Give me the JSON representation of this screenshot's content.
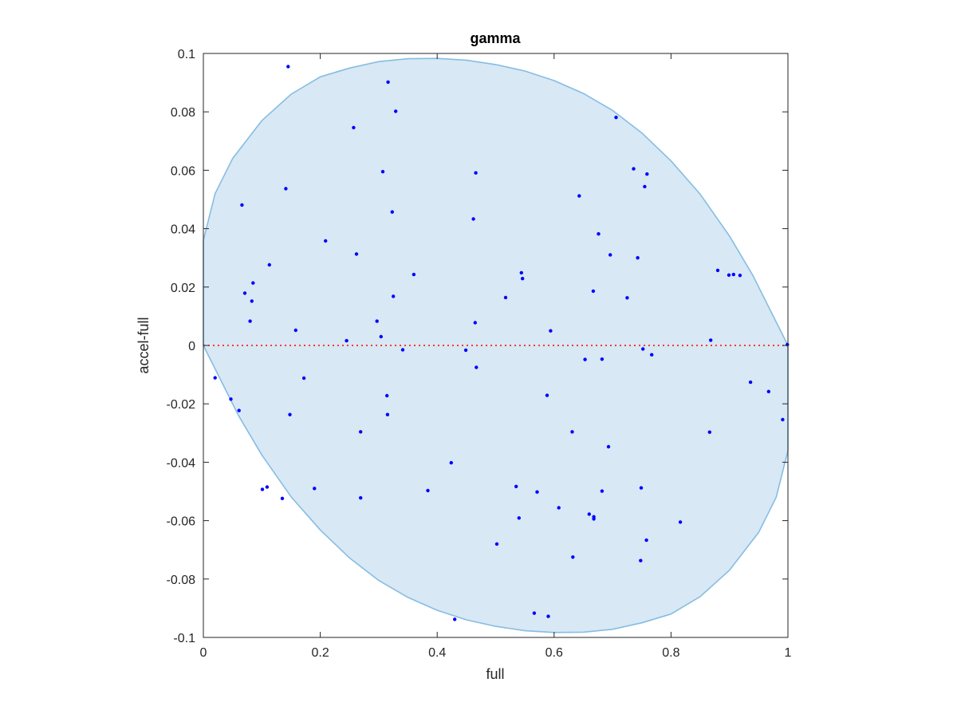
{
  "chart_data": {
    "type": "scatter",
    "title": "gamma",
    "xlabel": "full",
    "ylabel": "accel-full",
    "xlim": [
      0,
      1
    ],
    "ylim": [
      -0.1,
      0.1
    ],
    "xticks": [
      0,
      0.2,
      0.4,
      0.6,
      0.8,
      1
    ],
    "xtick_labels": [
      "0",
      "0.2",
      "0.4",
      "0.6",
      "0.8",
      "1"
    ],
    "yticks": [
      0.1,
      0.08,
      0.06,
      0.04,
      0.02,
      0,
      -0.02,
      -0.04,
      -0.06,
      -0.08,
      -0.1
    ],
    "ytick_labels": [
      "0.1",
      "0.08",
      "0.06",
      "0.04",
      "0.02",
      "0",
      "-0.02",
      "-0.04",
      "-0.06",
      "-0.08",
      "-0.1"
    ],
    "grid": false,
    "reference_line": {
      "y": 0,
      "style": "dotted",
      "color": "#ff0000"
    },
    "region": {
      "shape": "ellipse",
      "fill": "#d8e8f4",
      "edge": "#86bde3",
      "boundary": [
        [
          0.0,
          0.036
        ],
        [
          0.02,
          0.052
        ],
        [
          0.05,
          0.064
        ],
        [
          0.1,
          0.077
        ],
        [
          0.15,
          0.086
        ],
        [
          0.2,
          0.092
        ],
        [
          0.25,
          0.095
        ],
        [
          0.3,
          0.0972
        ],
        [
          0.35,
          0.0982
        ],
        [
          0.4,
          0.0983
        ],
        [
          0.45,
          0.0977
        ],
        [
          0.5,
          0.0962
        ],
        [
          0.55,
          0.094
        ],
        [
          0.6,
          0.0907
        ],
        [
          0.65,
          0.0863
        ],
        [
          0.7,
          0.0805
        ],
        [
          0.75,
          0.0728
        ],
        [
          0.8,
          0.0632
        ],
        [
          0.85,
          0.0518
        ],
        [
          0.9,
          0.0375
        ],
        [
          0.94,
          0.024
        ],
        [
          0.97,
          0.012
        ],
        [
          0.99,
          0.004
        ],
        [
          1.0,
          0.0
        ],
        [
          1.0,
          -0.036
        ],
        [
          0.98,
          -0.052
        ],
        [
          0.95,
          -0.064
        ],
        [
          0.9,
          -0.077
        ],
        [
          0.85,
          -0.086
        ],
        [
          0.8,
          -0.092
        ],
        [
          0.75,
          -0.095
        ],
        [
          0.7,
          -0.0972
        ],
        [
          0.65,
          -0.0982
        ],
        [
          0.6,
          -0.0983
        ],
        [
          0.55,
          -0.0977
        ],
        [
          0.5,
          -0.0962
        ],
        [
          0.45,
          -0.094
        ],
        [
          0.4,
          -0.0907
        ],
        [
          0.35,
          -0.0863
        ],
        [
          0.3,
          -0.0805
        ],
        [
          0.25,
          -0.0728
        ],
        [
          0.2,
          -0.0632
        ],
        [
          0.15,
          -0.0518
        ],
        [
          0.1,
          -0.0375
        ],
        [
          0.06,
          -0.024
        ],
        [
          0.03,
          -0.012
        ],
        [
          0.01,
          -0.004
        ],
        [
          0.0,
          0.0
        ]
      ]
    },
    "series": [
      {
        "color": "#0000ff",
        "marker": "dot",
        "points": [
          [
            0.145,
            0.0955
          ],
          [
            0.316,
            0.0902
          ],
          [
            0.329,
            0.0802
          ],
          [
            0.257,
            0.0746
          ],
          [
            0.706,
            0.0781
          ],
          [
            0.307,
            0.0595
          ],
          [
            0.466,
            0.0591
          ],
          [
            0.736,
            0.0605
          ],
          [
            0.759,
            0.0587
          ],
          [
            0.755,
            0.0544
          ],
          [
            0.066,
            0.0481
          ],
          [
            0.141,
            0.0537
          ],
          [
            0.323,
            0.0457
          ],
          [
            0.643,
            0.0512
          ],
          [
            0.462,
            0.0433
          ],
          [
            0.676,
            0.0382
          ],
          [
            0.209,
            0.0358
          ],
          [
            0.262,
            0.0313
          ],
          [
            0.696,
            0.031
          ],
          [
            0.743,
            0.03
          ],
          [
            0.113,
            0.0276
          ],
          [
            0.544,
            0.0249
          ],
          [
            0.546,
            0.0229
          ],
          [
            0.36,
            0.0243
          ],
          [
            0.88,
            0.0257
          ],
          [
            0.899,
            0.0241
          ],
          [
            0.907,
            0.0243
          ],
          [
            0.918,
            0.024
          ],
          [
            0.085,
            0.0214
          ],
          [
            0.071,
            0.0179
          ],
          [
            0.083,
            0.0152
          ],
          [
            0.325,
            0.0168
          ],
          [
            0.517,
            0.0164
          ],
          [
            0.667,
            0.0186
          ],
          [
            0.725,
            0.0163
          ],
          [
            0.08,
            0.0083
          ],
          [
            0.297,
            0.0083
          ],
          [
            0.465,
            0.0078
          ],
          [
            0.158,
            0.0052
          ],
          [
            0.594,
            0.005
          ],
          [
            0.304,
            0.003
          ],
          [
            0.245,
            0.0016
          ],
          [
            0.868,
            0.0018
          ],
          [
            0.999,
            0.0003
          ],
          [
            0.341,
            -0.0015
          ],
          [
            0.449,
            -0.0016
          ],
          [
            0.752,
            -0.0012
          ],
          [
            0.767,
            -0.0032
          ],
          [
            0.653,
            -0.0048
          ],
          [
            0.682,
            -0.0047
          ],
          [
            0.467,
            -0.0075
          ],
          [
            0.02,
            -0.0111
          ],
          [
            0.172,
            -0.0112
          ],
          [
            0.936,
            -0.0126
          ],
          [
            0.967,
            -0.0158
          ],
          [
            0.047,
            -0.0184
          ],
          [
            0.314,
            -0.0172
          ],
          [
            0.588,
            -0.0171
          ],
          [
            0.061,
            -0.0223
          ],
          [
            0.148,
            -0.0237
          ],
          [
            0.315,
            -0.0237
          ],
          [
            0.991,
            -0.0254
          ],
          [
            0.269,
            -0.0296
          ],
          [
            0.631,
            -0.0296
          ],
          [
            0.866,
            -0.0297
          ],
          [
            0.693,
            -0.0347
          ],
          [
            0.424,
            -0.0402
          ],
          [
            0.19,
            -0.049
          ],
          [
            0.101,
            -0.0493
          ],
          [
            0.109,
            -0.0485
          ],
          [
            0.384,
            -0.0497
          ],
          [
            0.535,
            -0.0483
          ],
          [
            0.571,
            -0.0502
          ],
          [
            0.682,
            -0.0499
          ],
          [
            0.749,
            -0.0488
          ],
          [
            0.135,
            -0.0524
          ],
          [
            0.269,
            -0.0522
          ],
          [
            0.608,
            -0.0556
          ],
          [
            0.66,
            -0.0578
          ],
          [
            0.668,
            -0.0587
          ],
          [
            0.668,
            -0.0594
          ],
          [
            0.54,
            -0.0591
          ],
          [
            0.816,
            -0.0605
          ],
          [
            0.758,
            -0.0667
          ],
          [
            0.502,
            -0.068
          ],
          [
            0.632,
            -0.0725
          ],
          [
            0.748,
            -0.0737
          ],
          [
            0.566,
            -0.0917
          ],
          [
            0.59,
            -0.0928
          ],
          [
            0.43,
            -0.0938
          ]
        ]
      }
    ]
  }
}
